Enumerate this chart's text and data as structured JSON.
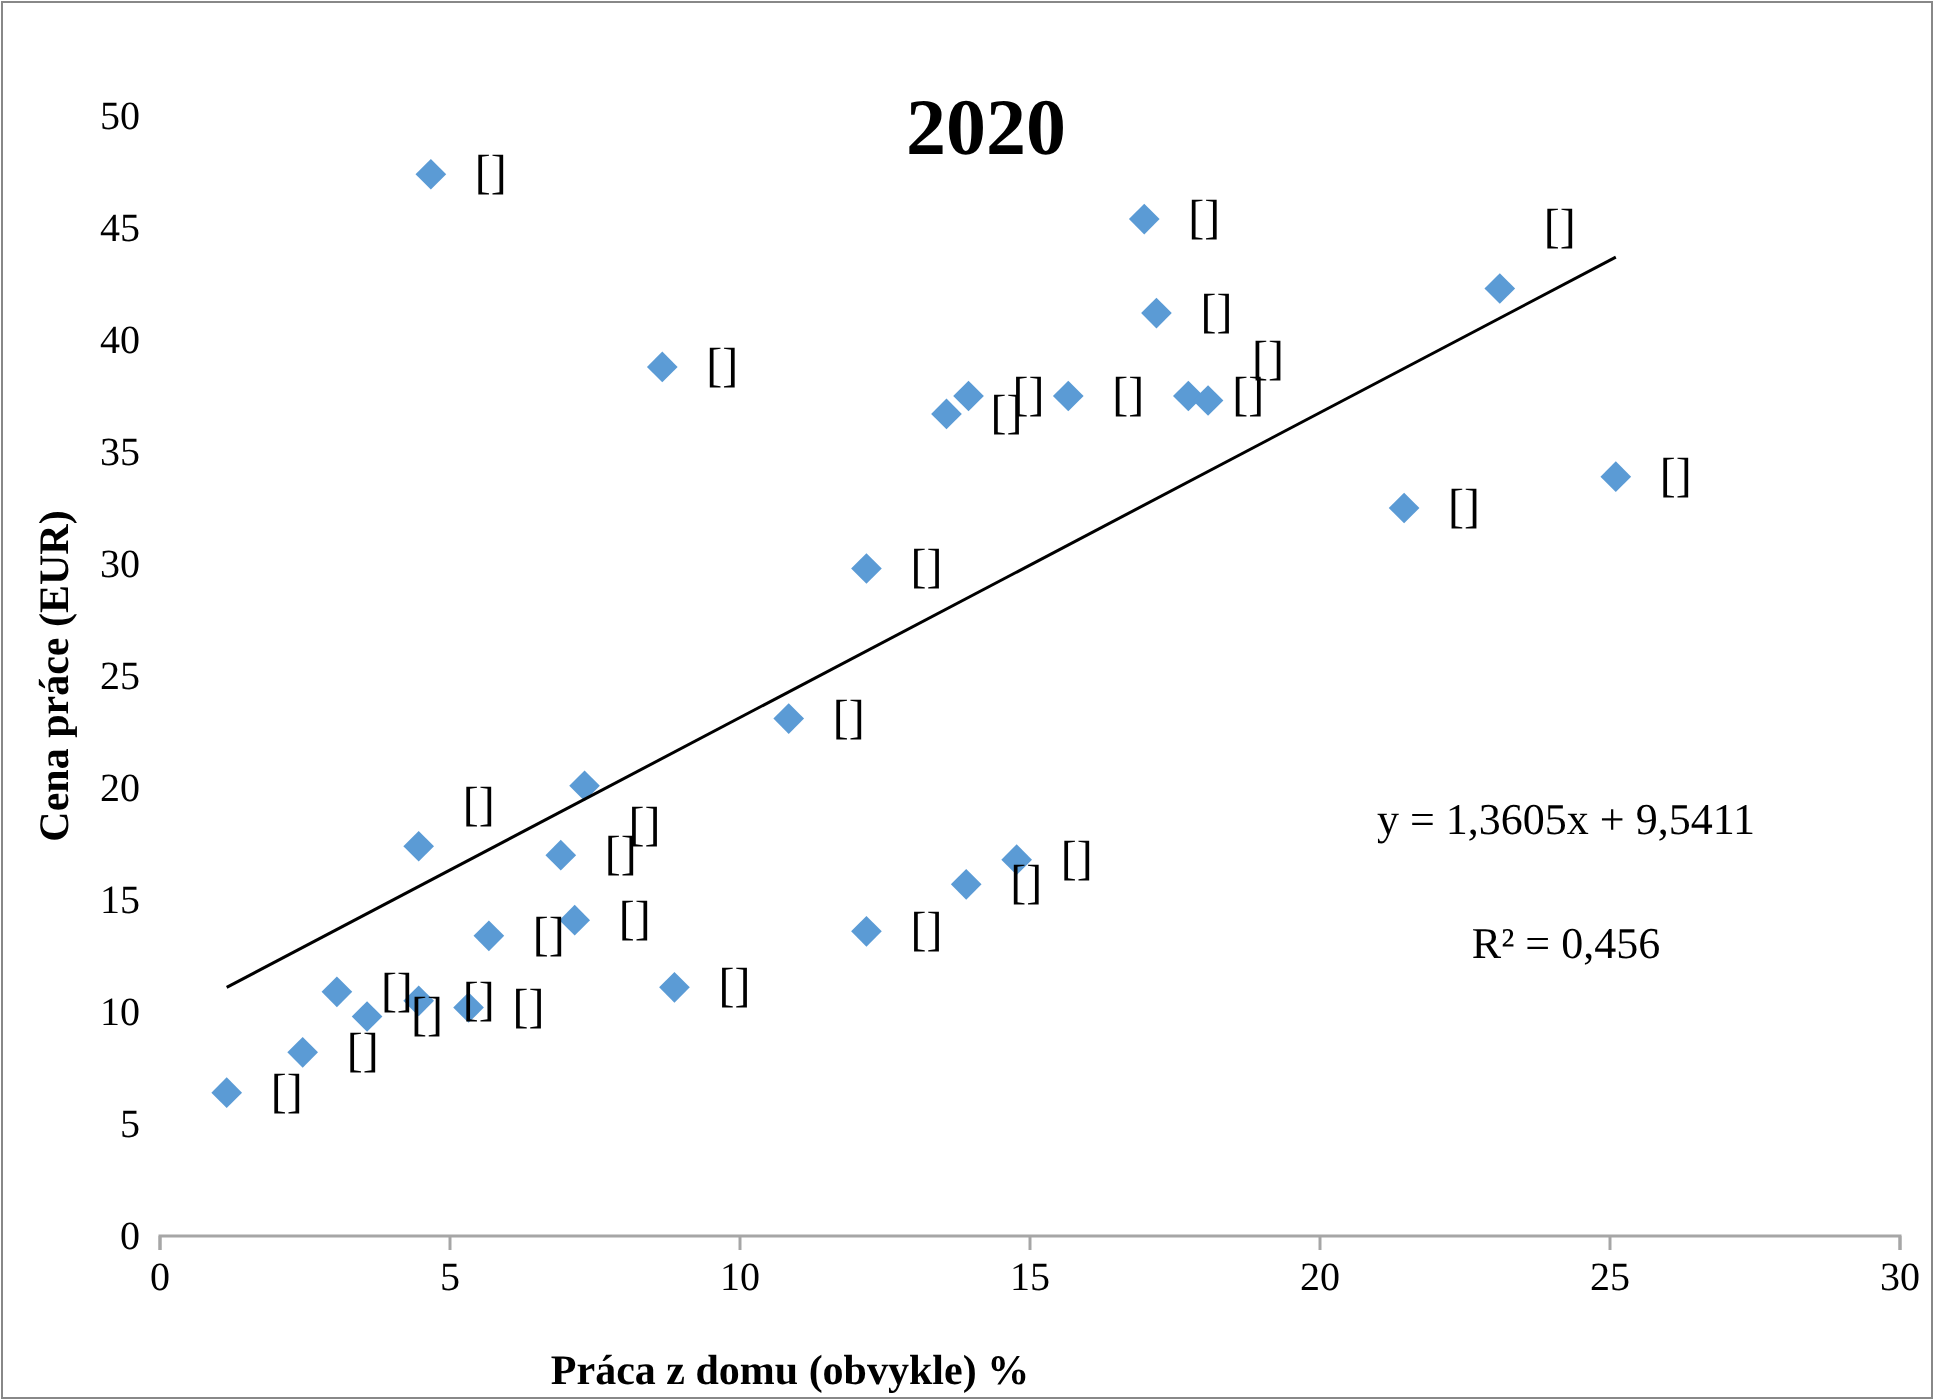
{
  "chart_data": {
    "type": "scatter",
    "title": "2020",
    "xlabel": "Práca z domu  (obvykle)  %",
    "ylabel": "Cena práce (EUR)",
    "xlim": [
      0,
      30
    ],
    "xticks": [
      0,
      5,
      10,
      15,
      20,
      25,
      30
    ],
    "ylim": [
      0,
      50
    ],
    "yticks": [
      0,
      5,
      10,
      15,
      20,
      25,
      30,
      35,
      40,
      45,
      50
    ],
    "grid": false,
    "series": [
      {
        "color": "#5b9bd5",
        "marker": "diamond",
        "x": [
          1.15,
          2.46,
          3.05,
          3.57,
          4.46,
          4.46,
          4.67,
          5.32,
          5.67,
          6.91,
          7.15,
          7.32,
          8.66,
          8.87,
          10.84,
          12.18,
          12.18,
          13.56,
          13.94,
          13.9,
          14.77,
          15.66,
          16.97,
          17.18,
          17.73,
          18.07,
          21.45,
          23.1,
          25.1
        ],
        "values": [
          6.4,
          8.2,
          10.9,
          9.8,
          17.4,
          10.5,
          47.4,
          10.2,
          13.4,
          17.0,
          14.1,
          20.1,
          38.8,
          11.1,
          23.1,
          29.8,
          13.6,
          36.7,
          37.5,
          15.7,
          16.8,
          37.5,
          45.4,
          41.2,
          37.5,
          37.3,
          32.5,
          42.3,
          33.9
        ],
        "value_labels": [
          "[]",
          "[]",
          "[]",
          "[]",
          "[]",
          "[]",
          "[]",
          "[]",
          "[]",
          "[]",
          "[]",
          "[]",
          "[]",
          "[]",
          "[]",
          "[]",
          "[]",
          "[]",
          "[]",
          "[]",
          "[]",
          "[]",
          "[]",
          "[]",
          "[]",
          "[]",
          "[]",
          "[]",
          "[]"
        ]
      },
      {
        "type": "line",
        "color": "#000000",
        "marker": "none",
        "line_style": "solid",
        "x": [
          1.15,
          25.1
        ],
        "values": [
          11.1,
          43.7
        ]
      }
    ],
    "annotations": [
      "y = 1,3605x  + 9,5411",
      "R² = 0,456"
    ]
  }
}
